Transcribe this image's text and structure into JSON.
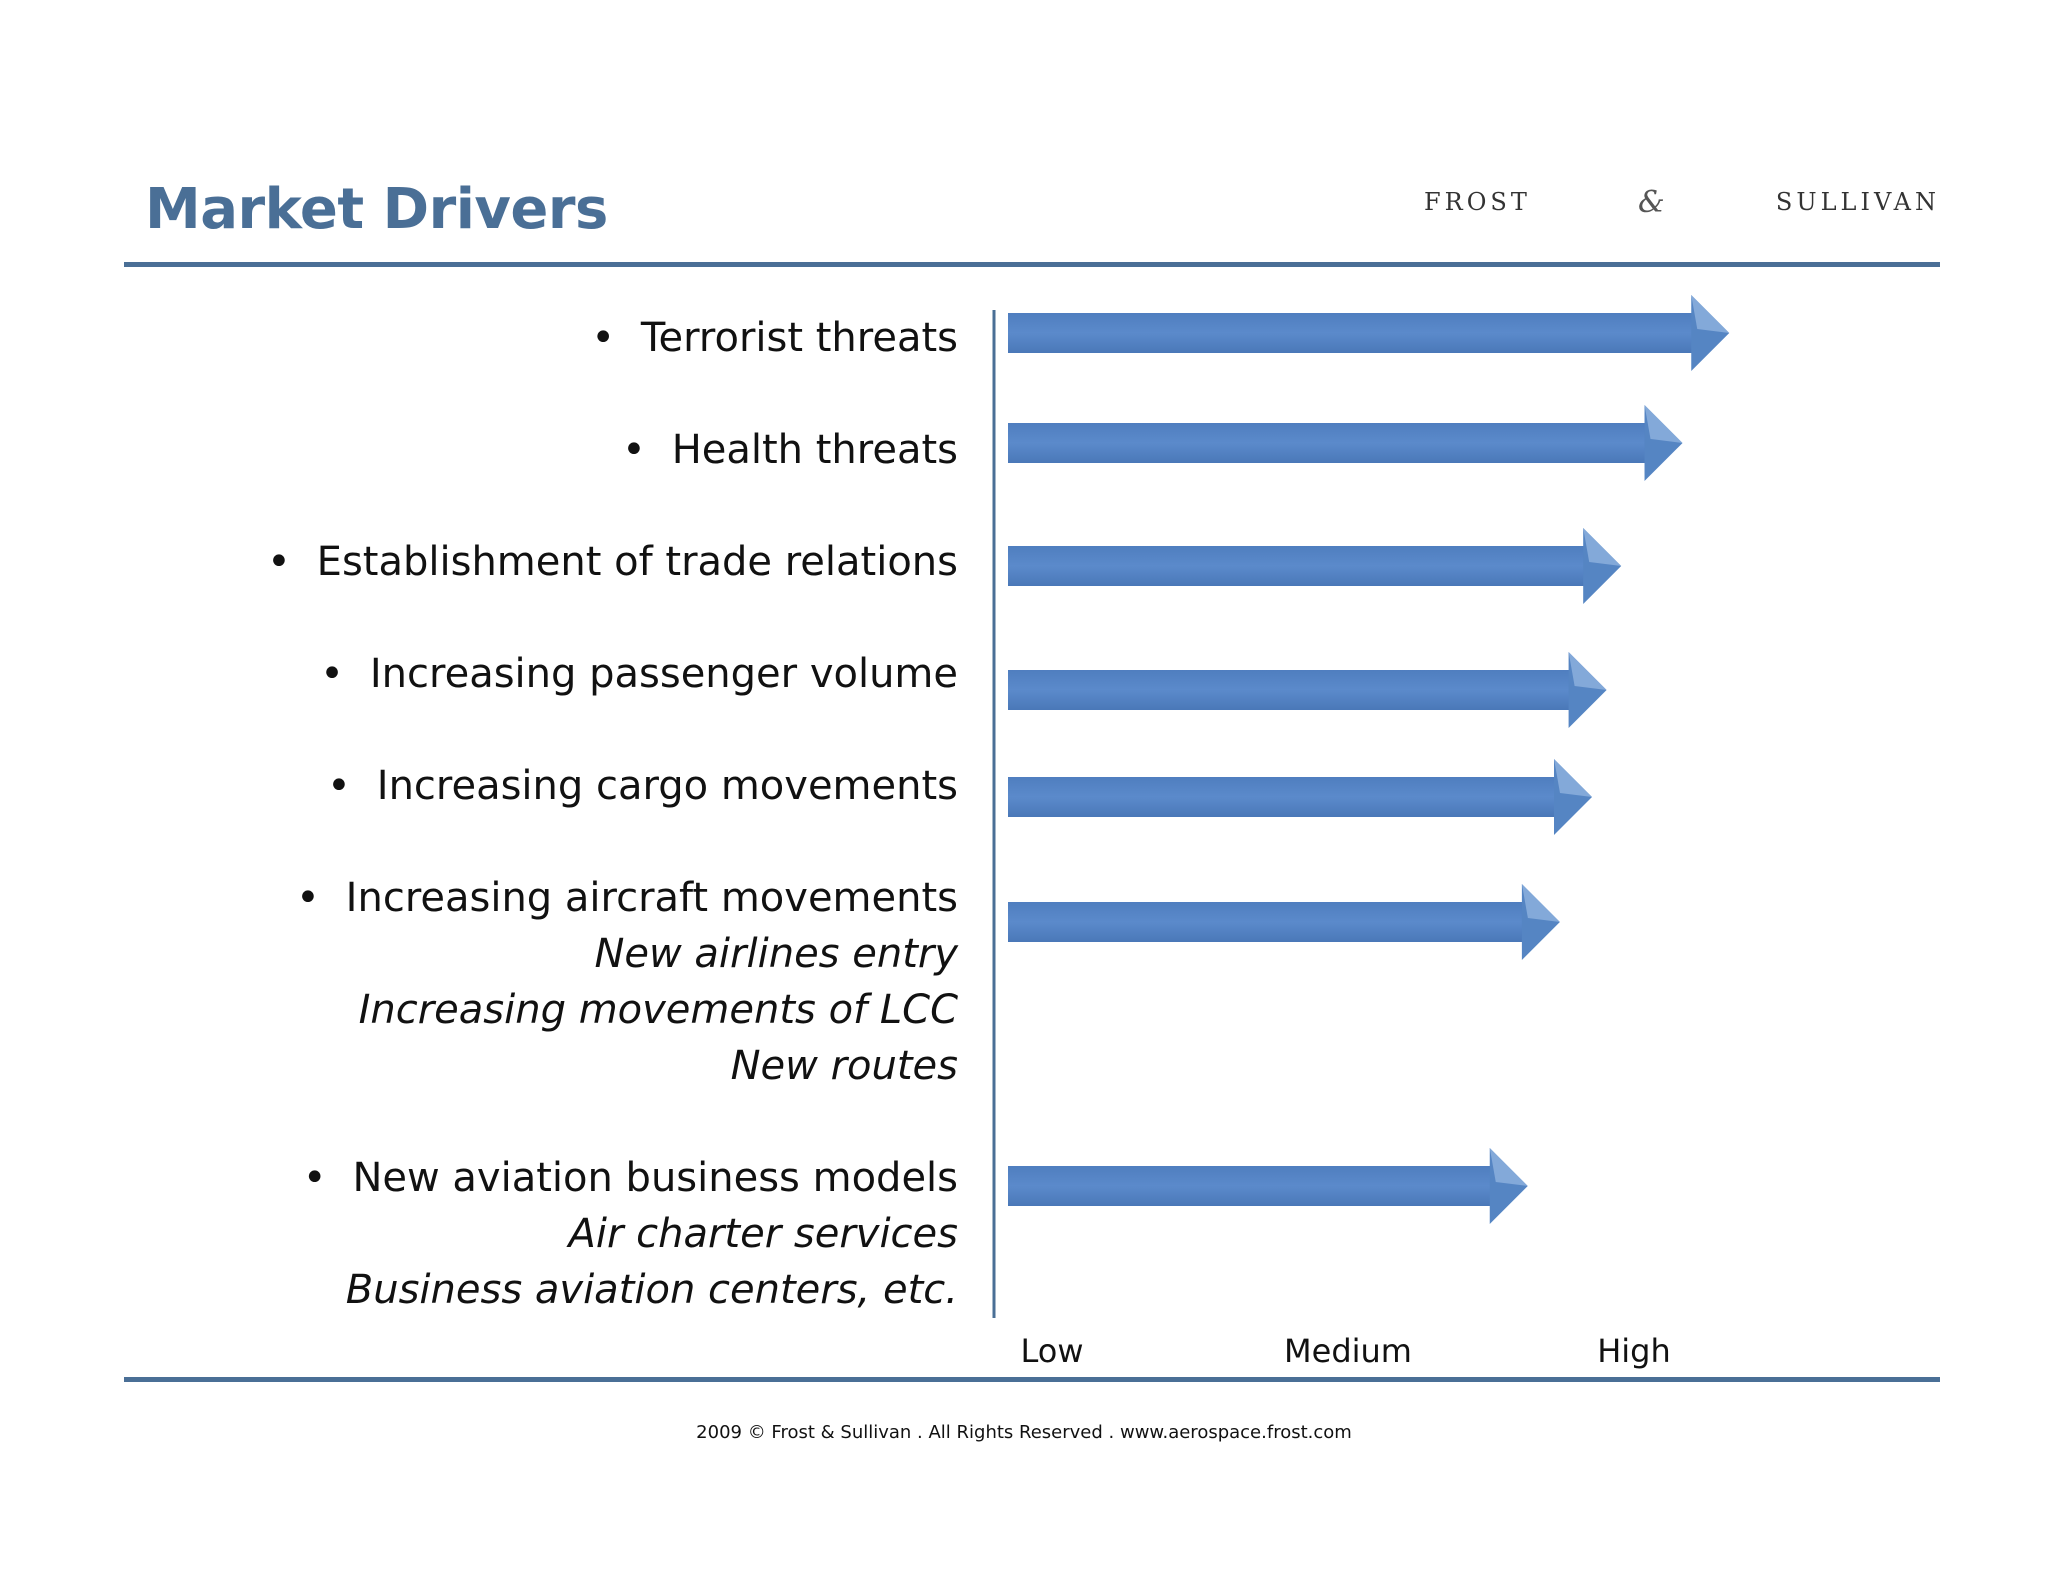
{
  "slide": {
    "title": "Market Drivers",
    "logo": {
      "left": "FROST",
      "amp": "&",
      "right": "SULLIVAN"
    },
    "footer": "2009 © Frost & Sullivan . All Rights Reserved . www.aerospace.frost.com"
  },
  "colors": {
    "accent": "#4a6f96",
    "arrow": "#5585c3",
    "arrow_highlight": "#8fb2df"
  },
  "chart_data": {
    "type": "bar",
    "title": "",
    "xlabel": "",
    "ylabel": "",
    "scale_labels": [
      "Low",
      "Medium",
      "High"
    ],
    "xlim": [
      0,
      3
    ],
    "categories": [
      {
        "label": "Terrorist threats",
        "sub": []
      },
      {
        "label": "Health threats",
        "sub": []
      },
      {
        "label": "Establishment of trade relations",
        "sub": []
      },
      {
        "label": "Increasing passenger volume",
        "sub": []
      },
      {
        "label": "Increasing cargo movements",
        "sub": []
      },
      {
        "label": "Increasing aircraft movements",
        "sub": [
          "New airlines entry",
          "Increasing movements of LCC",
          "New routes"
        ]
      },
      {
        "label": "New aviation business models",
        "sub": [
          "Air charter services",
          "Business aviation centers, etc."
        ]
      }
    ],
    "values": [
      2.47,
      2.31,
      2.1,
      2.05,
      2.0,
      1.89,
      1.78
    ]
  }
}
